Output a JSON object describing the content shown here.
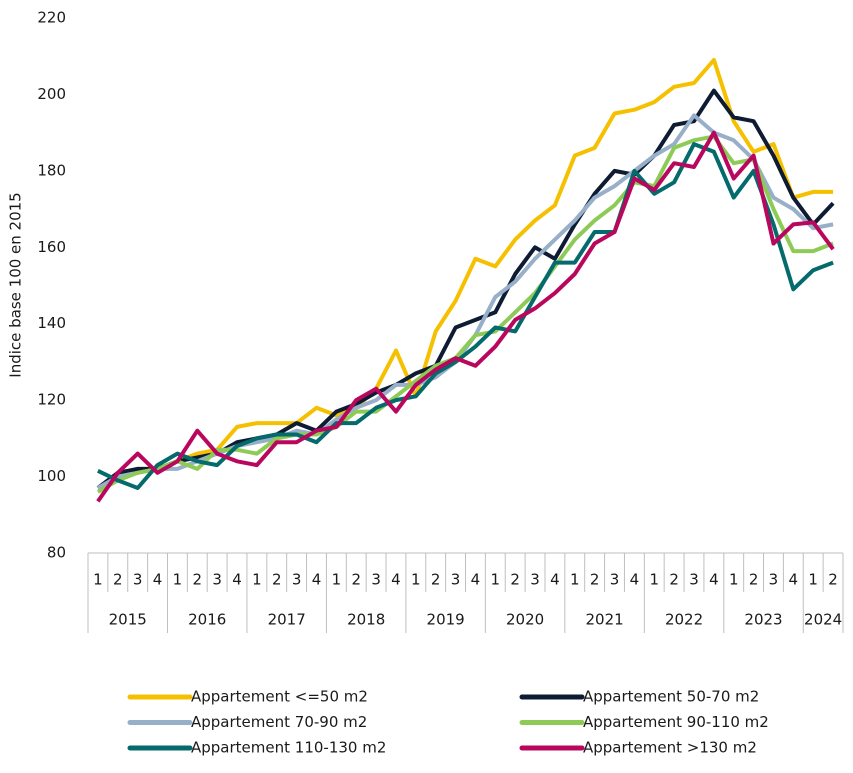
{
  "chart_data": {
    "type": "line",
    "y_label": "Indice base 100 en 2015",
    "categories": [
      "1",
      "2",
      "3",
      "4",
      "1",
      "2",
      "3",
      "4",
      "1",
      "2",
      "3",
      "4",
      "1",
      "2",
      "3",
      "4",
      "1",
      "2",
      "3",
      "4",
      "1",
      "2",
      "3",
      "4",
      "1",
      "2",
      "3",
      "4",
      "1",
      "2",
      "3",
      "4",
      "1",
      "2",
      "3",
      "4",
      "1",
      "2"
    ],
    "years": [
      "2015",
      "2016",
      "2017",
      "2018",
      "2019",
      "2020",
      "2021",
      "2022",
      "2023",
      "2024"
    ],
    "ylim": [
      80,
      220
    ],
    "yticks": [
      80,
      100,
      120,
      140,
      160,
      180,
      200,
      220
    ],
    "series": [
      {
        "name": "Appartement <=50 m2",
        "color": "#f5c000",
        "values": [
          97,
          100,
          102,
          102,
          104,
          106,
          107,
          113,
          114,
          114,
          114,
          118,
          116,
          118,
          123,
          133,
          121,
          138,
          146,
          157,
          155,
          162,
          167,
          171,
          184,
          186,
          195,
          196,
          198,
          202,
          203,
          209,
          193,
          185,
          187,
          173,
          174.5,
          174.5
        ]
      },
      {
        "name": "Appartement 50-70 m2",
        "color": "#0d1b33",
        "values": [
          97,
          101,
          102,
          102,
          104,
          105,
          106,
          109,
          110,
          111,
          114,
          112,
          117,
          119,
          122,
          124,
          127,
          129,
          139,
          141,
          143,
          153,
          160,
          157,
          166,
          174,
          180,
          179,
          184,
          192,
          193,
          201,
          194,
          193,
          184,
          173,
          166,
          171.5
        ]
      },
      {
        "name": "Appartement 70-90 m2",
        "color": "#97afc8",
        "values": [
          97,
          100,
          101,
          102,
          102,
          104,
          106,
          108,
          109,
          110,
          112,
          111,
          115,
          118,
          120,
          124,
          124,
          126,
          130,
          137,
          147,
          151,
          157,
          162,
          167,
          173,
          176,
          180,
          184,
          187,
          194.5,
          190,
          188,
          183,
          173,
          170,
          165,
          166
        ]
      },
      {
        "name": "Appartement 90-110 m2",
        "color": "#8dcb56",
        "values": [
          96,
          99,
          101,
          102,
          104,
          102,
          107,
          107,
          106,
          110,
          111,
          111,
          113,
          117,
          117,
          121,
          125,
          129,
          131,
          137,
          138,
          143,
          148,
          155,
          162,
          167,
          171,
          177,
          176,
          186,
          188,
          189,
          182,
          183,
          170,
          159,
          159,
          161
        ]
      },
      {
        "name": "Appartement 110-130 m2",
        "color": "#046a6b",
        "values": [
          101.5,
          99,
          97,
          103,
          106,
          104,
          103,
          108,
          110,
          111,
          111,
          109,
          114,
          114,
          118,
          120,
          121,
          127,
          130,
          134,
          139,
          138,
          147,
          156,
          156,
          164,
          164,
          180,
          174,
          177,
          187,
          185,
          173,
          180,
          166,
          149,
          154,
          156
        ]
      },
      {
        "name": "Appartement >130 m2",
        "color": "#b8075d",
        "values": [
          93.5,
          101,
          106,
          101,
          104,
          112,
          106,
          104,
          103,
          109,
          109,
          112,
          113,
          120,
          123,
          117,
          124,
          128,
          131,
          129,
          134,
          141,
          144,
          148,
          153,
          161,
          164,
          178,
          175,
          182,
          181,
          190,
          178,
          184,
          161,
          166,
          166.5,
          159.5
        ]
      }
    ]
  }
}
